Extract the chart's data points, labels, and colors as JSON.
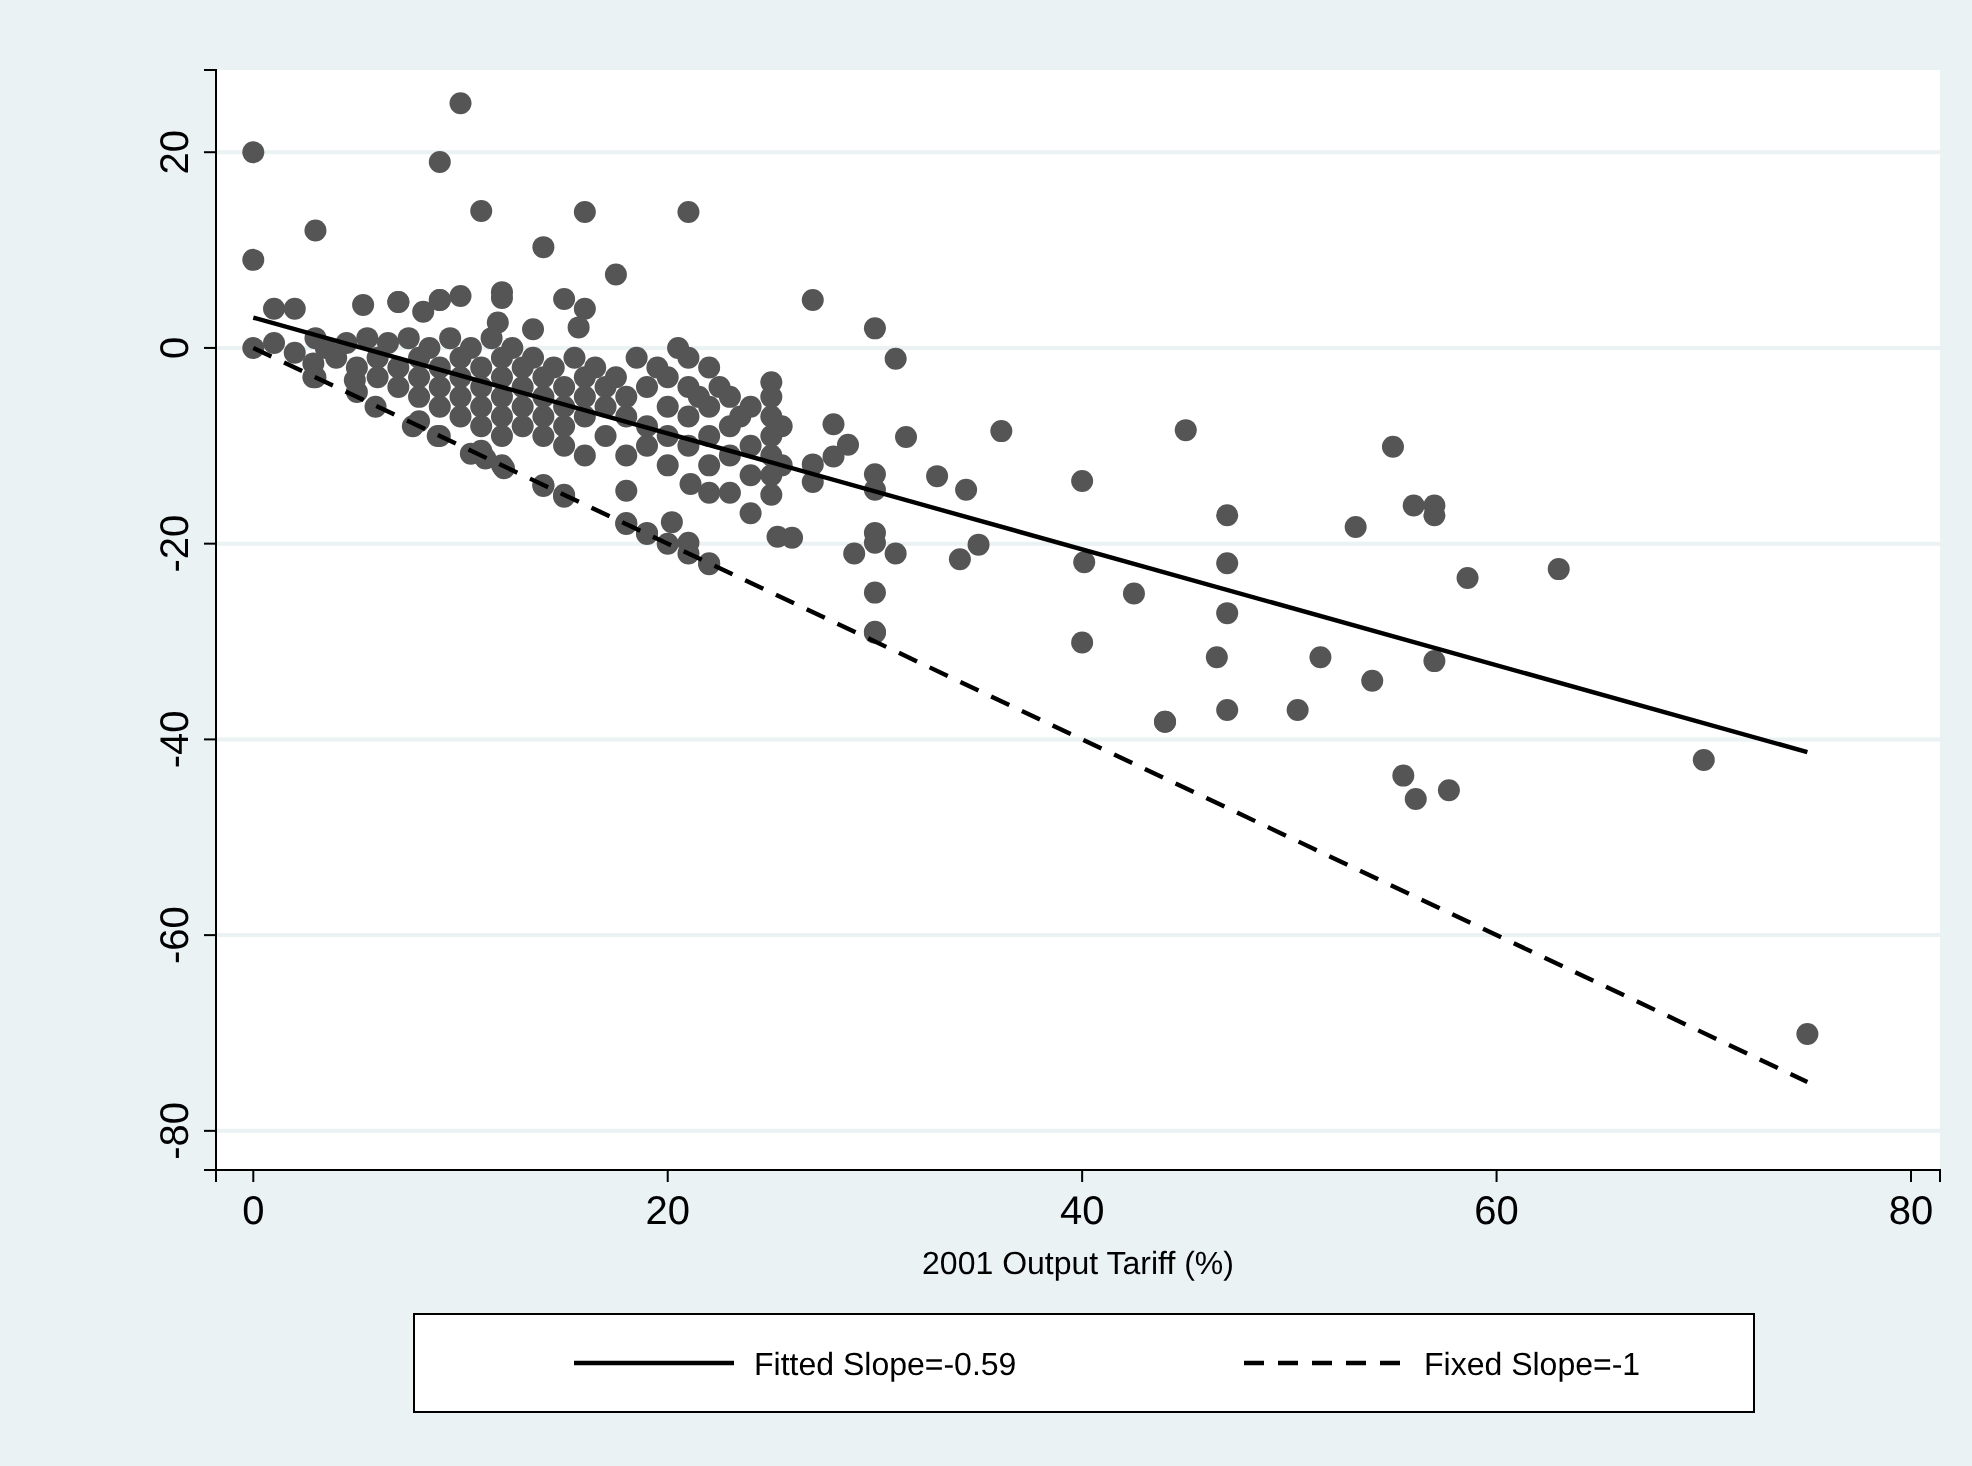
{
  "chart_data": {
    "type": "scatter",
    "xlabel": "2001 Output Tariff (%)",
    "xlim": [
      -1.8,
      81.4
    ],
    "ylim": [
      -84,
      28.4
    ],
    "xticks": [
      0,
      20,
      40,
      60,
      80
    ],
    "yticks": [
      -80,
      -60,
      -40,
      -20,
      0,
      20
    ],
    "grid": "y",
    "legend": "bottom",
    "series": [
      {
        "color": "#555555",
        "marker": "circle",
        "x": [
          0,
          0,
          3,
          9,
          10,
          11,
          14,
          16,
          17.5,
          21,
          27,
          30,
          31,
          12,
          12,
          15,
          16,
          9,
          7,
          10,
          0,
          3,
          5,
          8,
          9,
          11,
          12,
          14,
          15,
          18,
          19,
          20,
          21,
          22,
          30,
          44,
          45,
          40,
          55,
          47,
          53.2,
          56,
          57,
          57,
          40.1,
          47,
          58.6,
          63,
          42.5,
          47,
          40,
          46.5,
          51.5,
          54,
          57,
          44,
          47,
          50.4,
          55.5,
          56.1,
          57.7,
          70,
          75,
          28,
          31.5,
          28.7,
          28,
          36.1,
          27,
          27,
          30,
          30,
          33,
          34.4,
          30,
          30,
          29,
          31,
          34.1,
          35,
          30,
          30,
          25.3,
          26,
          1,
          2,
          2.9,
          2.9,
          4.9,
          5.9,
          7.7,
          8.9,
          10.5,
          11.2,
          12.1,
          14,
          15,
          18,
          18,
          19,
          20.2,
          21.1,
          22,
          21,
          22,
          23,
          24,
          5.3,
          7,
          8.2,
          9,
          11.8,
          13.5,
          15.7,
          1,
          2,
          3,
          3.5,
          4,
          4.5,
          5,
          5.5,
          6,
          6,
          6.5,
          7,
          7,
          7.5,
          8,
          8,
          8,
          8.5,
          9,
          9,
          9,
          9.5,
          10,
          10,
          10,
          10,
          10.5,
          11,
          11,
          11,
          11,
          11.5,
          12,
          12,
          12,
          12,
          12,
          12.5,
          13,
          13,
          13,
          13,
          13.5,
          14,
          14,
          14,
          14,
          14.5,
          15,
          15,
          15,
          15,
          15.5,
          16,
          16,
          16,
          16,
          16.5,
          17,
          17,
          17,
          17.5,
          18,
          18,
          18,
          18.5,
          19,
          19,
          19,
          19.5,
          20,
          20,
          20,
          20,
          20.5,
          21,
          21,
          21,
          21,
          21.5,
          22,
          22,
          22,
          22,
          22.5,
          23,
          23,
          23,
          23.5,
          24,
          24,
          24,
          25,
          25,
          25,
          25,
          25,
          25,
          25,
          25.5,
          25.5
        ],
        "values": [
          20,
          9,
          12,
          19,
          25,
          14,
          10.3,
          13.9,
          7.5,
          13.9,
          4.9,
          2,
          -1.1,
          5.7,
          5.1,
          5,
          4,
          4.9,
          4.7,
          5.3,
          0,
          -3,
          -4.5,
          -7.5,
          -9,
          -10.5,
          -12,
          -14,
          -15,
          -18,
          -19,
          -20,
          -21,
          -22,
          -29,
          -38.2,
          -8.4,
          -13.6,
          -10.1,
          -17.1,
          -18.3,
          -16.1,
          -16.1,
          -17.1,
          -21.9,
          -22,
          -23.5,
          -22.6,
          -25.1,
          -27.1,
          -30.1,
          -31.6,
          -31.6,
          -34,
          -32,
          -38.2,
          -37,
          -37,
          -43.7,
          -46.1,
          -45.2,
          -42.1,
          -70.1,
          -7.8,
          -9.1,
          -9.9,
          -11.1,
          -8.5,
          -11.9,
          -13.7,
          -12.9,
          -14.5,
          -13.1,
          -14.5,
          -18.9,
          -19.9,
          -21,
          -21,
          -21.6,
          -20.1,
          -25,
          -29.1,
          -19.3,
          -19.4,
          4,
          4,
          -1.6,
          -3,
          -3.3,
          -6,
          -8,
          -9,
          -10.8,
          -11.3,
          -12.3,
          -14.1,
          -15.2,
          -14.6,
          -17.9,
          -18.9,
          -17.8,
          -13.9,
          -14.8,
          -19.9,
          -22.1,
          -14.8,
          -16.9,
          4.4,
          4.7,
          3.7,
          4.9,
          2.6,
          1.9,
          2.1,
          0.5,
          -0.5,
          1,
          0,
          -1,
          0.5,
          -2,
          1,
          -1,
          -3,
          0.5,
          -2,
          -4,
          1,
          -1,
          -3,
          -5,
          0,
          -2,
          -4,
          -6,
          1,
          -1,
          -3,
          -5,
          -7,
          0,
          -2,
          -4,
          -6,
          -8,
          1,
          -1,
          -3,
          -5,
          -7,
          -9,
          0,
          -2,
          -4,
          -6,
          -8,
          -1,
          -3,
          -5,
          -7,
          -9,
          -2,
          -4,
          -6,
          -8,
          -10,
          -1,
          -3,
          -5,
          -7,
          -11,
          -2,
          -4,
          -6,
          -9,
          -3,
          -5,
          -7,
          -11,
          -1,
          -4,
          -8,
          -10,
          -2,
          -3,
          -6,
          -9,
          -12,
          0,
          -1,
          -4,
          -7,
          -10,
          -5,
          -2,
          -6,
          -9,
          -12,
          -4,
          -5,
          -8,
          -11,
          -7,
          -6,
          -10,
          -13,
          -3.5,
          -5,
          -7,
          -9,
          -11,
          -13,
          -15,
          -8,
          -12
        ]
      },
      {
        "type": "line",
        "name": "Fitted Slope=-0.59",
        "color": "#000000",
        "line_style": "solid",
        "x": [
          0,
          75
        ],
        "values": [
          3.1,
          -41.3
        ]
      },
      {
        "type": "line",
        "name": "Fixed Slope=-1",
        "color": "#000000",
        "line_style": "dashed",
        "x": [
          0,
          75
        ],
        "values": [
          0,
          -75
        ]
      }
    ]
  }
}
